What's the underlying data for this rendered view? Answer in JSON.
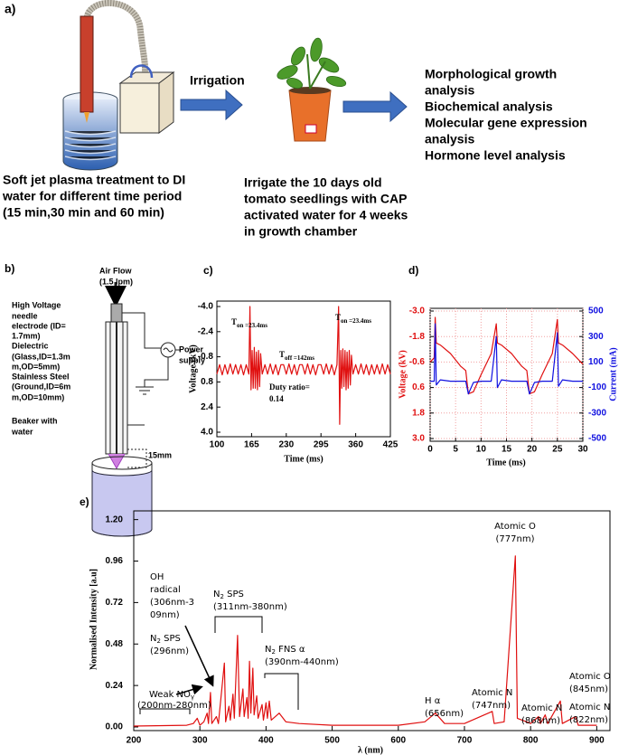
{
  "panel_a": {
    "label": "a)",
    "irrigation": "Irrigation",
    "left_caption": [
      "Soft jet plasma treatment to DI",
      "water for different time period",
      "(15 min,30 min and 60 min)"
    ],
    "middle_caption": [
      "Irrigate the 10 days old",
      "tomato seedlings with CAP",
      "activated water for 4 weeks",
      "in growth chamber"
    ],
    "outcomes": [
      "Morphological growth",
      "analysis",
      "Biochemical analysis",
      "Molecular gene expression",
      "analysis",
      "Hormone level analysis"
    ]
  },
  "panel_b": {
    "label": "b)",
    "texts": [
      "Air Flow",
      "(1.5 lpm)",
      "High Voltage",
      "needle",
      "electrode (ID=",
      "1.7mm)",
      "Dielectric",
      "(Glass,ID=1.3m",
      "m,OD=5mm)",
      "Stainless Steel",
      "(Ground,ID=6m",
      "m,OD=10mm)",
      "Power",
      "supply",
      "Beaker with",
      "water",
      "15mm"
    ]
  },
  "chart_data": [
    {
      "type": "line",
      "panel": "c)",
      "x_label": "Time (ms)",
      "y_label": "Voltage (kV)",
      "x": [
        100,
        105,
        110,
        115,
        120,
        125,
        130,
        135,
        140,
        145,
        150,
        155,
        160,
        162,
        164,
        166,
        168,
        170,
        172,
        174,
        176,
        178,
        180,
        182,
        185,
        190,
        195,
        200,
        205,
        210,
        215,
        220,
        225,
        230,
        235,
        240,
        245,
        250,
        255,
        260,
        265,
        270,
        275,
        280,
        285,
        290,
        295,
        300,
        305,
        310,
        315,
        320,
        325,
        328,
        330,
        332,
        334,
        336,
        338,
        340,
        342,
        344,
        346,
        348,
        350,
        352,
        355,
        360,
        365,
        370,
        375,
        380,
        385,
        390,
        395,
        400,
        405,
        410,
        415,
        420,
        425
      ],
      "series": [
        {
          "color": "#e01010",
          "values": [
            0.3,
            -0.3,
            0.35,
            -0.3,
            0.3,
            -0.35,
            0.3,
            -0.3,
            0.3,
            -0.3,
            0.35,
            -0.3,
            0.3,
            -4,
            1.3,
            -1.2,
            1.2,
            -1.4,
            1.2,
            -1.1,
            1.3,
            -1.2,
            1.1,
            -1,
            0.3,
            -0.3,
            0.3,
            -0.35,
            0.3,
            -0.3,
            0.35,
            -0.3,
            -0.3,
            0.3,
            -0.35,
            0.3,
            -0.3,
            0.35,
            -0.3,
            -0.3,
            0.3,
            -0.35,
            0.3,
            -0.3,
            0.35,
            -0.3,
            -0.3,
            0.3,
            -0.35,
            0.3,
            -0.3,
            0.35,
            -0.3,
            -4,
            3.5,
            -1.2,
            1.2,
            -1.3,
            1.1,
            -1.2,
            1.3,
            -1.1,
            1.2,
            -1.2,
            1,
            -0.9,
            0.3,
            -0.3,
            0.3,
            -0.35,
            0.3,
            -0.3,
            0.35,
            -0.3,
            0.3,
            -0.3,
            0.3,
            -0.35,
            0.3,
            -0.3,
            0.3
          ]
        }
      ],
      "xlim": [
        100,
        425
      ],
      "xticks": [
        100,
        165,
        230,
        295,
        360,
        425
      ],
      "ylim": [
        4,
        -4
      ],
      "yticks": [
        {
          "value": -4,
          "label": "-4.0"
        },
        -2.4,
        -0.8,
        0.8,
        2.4,
        {
          "value": 4,
          "label": "4.0"
        }
      ],
      "grid": false,
      "annotations": [
        {
          "text": "T",
          "sub": "on =23.4ms"
        },
        {
          "text": "T",
          "sub": "on =23.4ms"
        },
        {
          "text": "T",
          "sub": "off =142ms"
        },
        {
          "text": "Duty ratio="
        },
        {
          "text": "0.14"
        }
      ]
    },
    {
      "type": "line",
      "panel": "d)",
      "x_label": "Time (ms)",
      "y_label": "Voltage (kV)",
      "y2_label": "Current (mA)",
      "x": [
        0,
        0.8,
        1,
        1.2,
        2,
        4,
        6,
        7,
        7.5,
        8.5,
        10,
        12,
        13,
        13.2,
        14,
        16,
        18,
        19,
        19.5,
        20.5,
        22,
        24,
        25,
        25.2,
        26,
        28,
        30
      ],
      "series": [
        {
          "color": "#e01010",
          "values": [
            -0.6,
            -0.8,
            -2.7,
            -1.5,
            -1.4,
            -1,
            -0.4,
            -0.2,
            0.9,
            0.8,
            0,
            -1,
            -2.4,
            -1.5,
            -1.4,
            -1,
            -0.4,
            -0.2,
            0.9,
            0.8,
            0,
            -1,
            -2.6,
            -1.5,
            -1.4,
            -1,
            -0.5
          ]
        },
        {
          "color": "#1010e0",
          "axis": "y2",
          "values": [
            -50,
            -50,
            400,
            -80,
            -40,
            -50,
            -50,
            -50,
            -150,
            -60,
            -50,
            -50,
            300,
            -100,
            -40,
            -50,
            -50,
            -50,
            -150,
            -60,
            -50,
            -50,
            330,
            -90,
            -40,
            -50,
            -50
          ]
        }
      ],
      "xlim": [
        0,
        30
      ],
      "xticks": [
        0,
        5,
        10,
        15,
        20,
        25,
        30
      ],
      "ylim": [
        3,
        -3
      ],
      "yticks": [
        {
          "value": -3,
          "label": "-3.0"
        },
        -1.8,
        -0.6,
        0.6,
        1.8,
        {
          "value": 3,
          "label": "3.0"
        }
      ],
      "y2lim": [
        -500,
        500
      ],
      "y2ticks": [
        500,
        300,
        100,
        -100,
        -300,
        -500
      ],
      "grid": true,
      "annotations": []
    },
    {
      "type": "line",
      "panel": "e)",
      "x_label": "λ (nm)",
      "y_label": "Normalised Intensity [a.u]",
      "x": [
        200,
        280,
        290,
        296,
        300,
        306,
        311,
        313,
        316,
        318,
        325,
        328,
        337,
        339,
        344,
        346,
        350,
        352,
        357,
        360,
        365,
        367,
        371,
        373,
        375,
        377,
        380,
        382,
        386,
        388,
        394,
        396,
        400,
        402,
        405,
        408,
        420,
        430,
        450,
        500,
        600,
        640,
        656,
        670,
        700,
        742,
        745,
        760,
        777,
        780,
        794,
        800,
        812,
        815,
        822,
        826,
        845,
        848,
        868,
        872,
        900
      ],
      "series": [
        {
          "color": "#e01010",
          "values": [
            0.005,
            0.01,
            0.02,
            0.05,
            0.01,
            0.03,
            0.08,
            0.02,
            0.2,
            0.02,
            0.06,
            0.02,
            0.37,
            0.03,
            0.12,
            0.04,
            0.19,
            0.05,
            0.53,
            0.06,
            0.22,
            0.06,
            0.17,
            0.05,
            0.38,
            0.08,
            0.34,
            0.07,
            0.18,
            0.05,
            0.13,
            0.04,
            0.14,
            0.05,
            0.15,
            0.04,
            0.08,
            0.03,
            0.02,
            0.01,
            0.01,
            0.03,
            0.08,
            0.02,
            0.02,
            0.09,
            0.02,
            0.03,
            0.99,
            0.05,
            0.03,
            0.02,
            0.06,
            0.02,
            0.07,
            0.02,
            0.15,
            0.02,
            0.06,
            0.01,
            0.01
          ]
        }
      ],
      "xlim": [
        200,
        920
      ],
      "xticks": [
        200,
        300,
        400,
        500,
        600,
        700,
        800,
        900
      ],
      "ylim": [
        0,
        1.24
      ],
      "yticks": [
        {
          "value": 0,
          "label": "0.00"
        },
        0.24,
        0.48,
        0.72,
        0.96,
        {
          "value": 1.2,
          "label": "1.20"
        }
      ],
      "grid": false,
      "annotations": [
        {
          "text": "Atomic O"
        },
        {
          "text": "(777nm)"
        },
        {
          "text": "OH"
        },
        {
          "text": "radical"
        },
        {
          "text": "(306nm-3"
        },
        {
          "text": "09nm)"
        },
        {
          "text": "N",
          "sub": "2",
          "after": " SPS"
        },
        {
          "text": "(296nm)"
        },
        {
          "text": "N",
          "sub": "2",
          "after": " SPS"
        },
        {
          "text": "(311nm-380nm)"
        },
        {
          "text": "N",
          "sub": "2",
          "after": " FNS α"
        },
        {
          "text": "(390nm-440nm)"
        },
        {
          "text": "Weak NO",
          "sub": "γ"
        },
        {
          "text": "(200nm-280nm)"
        },
        {
          "text": "H α"
        },
        {
          "text": "(656nm)"
        },
        {
          "text": "Atomic N"
        },
        {
          "text": "(747nm)"
        },
        {
          "text": "Atomic N"
        },
        {
          "text": "(868nm)"
        },
        {
          "text": "Atomic O"
        },
        {
          "text": "(845nm)"
        },
        {
          "text": "Atomic N"
        },
        {
          "text": "(822nm)"
        }
      ]
    }
  ]
}
